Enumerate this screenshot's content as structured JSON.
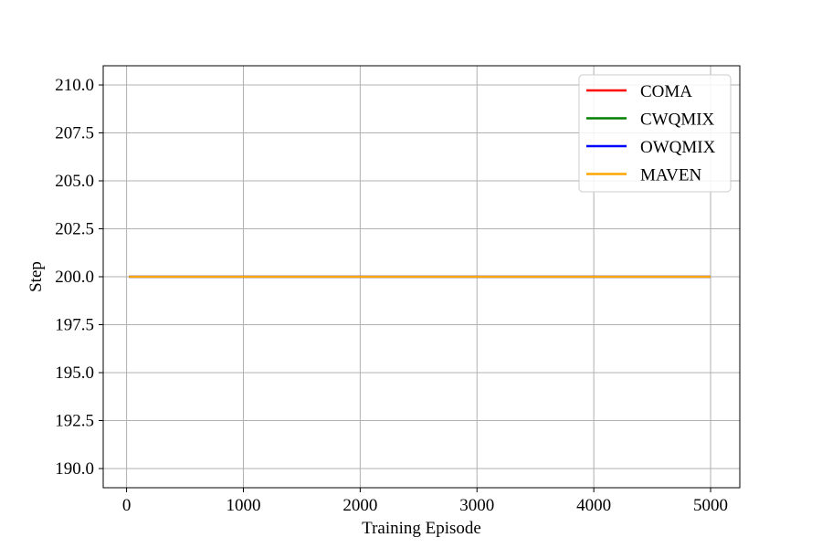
{
  "chart_data": {
    "type": "line",
    "title": "",
    "xlabel": "Training Episode",
    "ylabel": "Step",
    "xlim": [
      -200,
      5250
    ],
    "ylim": [
      189.0,
      211.0
    ],
    "xticks": [
      0,
      1000,
      2000,
      3000,
      4000,
      5000
    ],
    "xtick_labels": [
      "0",
      "1000",
      "2000",
      "3000",
      "4000",
      "5000"
    ],
    "yticks": [
      190.0,
      192.5,
      195.0,
      197.5,
      200.0,
      202.5,
      205.0,
      207.5,
      210.0
    ],
    "ytick_labels": [
      "190.0",
      "192.5",
      "195.0",
      "197.5",
      "200.0",
      "202.5",
      "205.0",
      "207.5",
      "210.0"
    ],
    "grid": true,
    "legend_position": "top-right",
    "x": [
      20,
      5000
    ],
    "series": [
      {
        "name": "COMA",
        "color": "#ff0000",
        "values": [
          200,
          200
        ]
      },
      {
        "name": "CWQMIX",
        "color": "#008000",
        "values": [
          200,
          200
        ]
      },
      {
        "name": "OWQMIX",
        "color": "#0000ff",
        "values": [
          200,
          200
        ]
      },
      {
        "name": "MAVEN",
        "color": "#ffa500",
        "values": [
          200,
          200
        ]
      }
    ]
  }
}
